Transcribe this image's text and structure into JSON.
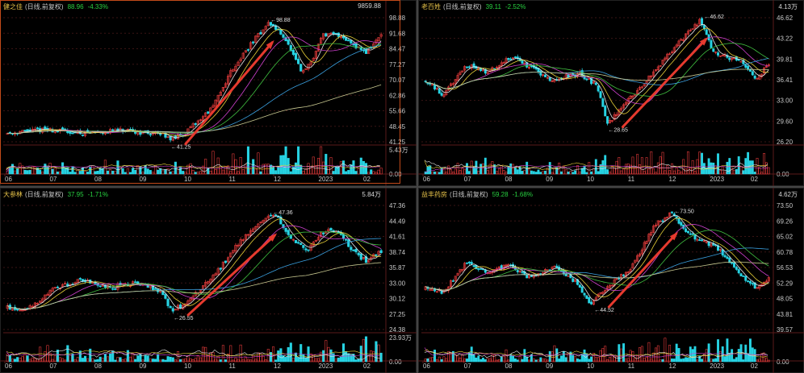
{
  "colors": {
    "up": "#e03a3a",
    "down": "#27d3e3",
    "ma5": "#e8e8e8",
    "ma10": "#e8d038",
    "ma20": "#d040d0",
    "ma30": "#40c040",
    "ma60": "#3aa0e0",
    "ma120": "#c8c890",
    "arrow": "#e63a2e",
    "grid": "#3a1414"
  },
  "panels": [
    {
      "name": "健之佳",
      "period": "(日线,前复权)",
      "price": "88.96",
      "change": "-4.33%",
      "volume": "9859.88",
      "yticks": [
        "98.88",
        "91.68",
        "84.47",
        "77.27",
        "70.07",
        "62.86",
        "55.66",
        "48.45",
        "41.25"
      ],
      "volticks": [
        "5.43万",
        "0.00"
      ],
      "xticks": [
        "06",
        "07",
        "08",
        "09",
        "10",
        "11",
        "12",
        "2023",
        "02"
      ],
      "high_label": "98.88",
      "low_label": "41.25",
      "ymin": 41.25,
      "ymax": 98.88,
      "base": 41,
      "profile": "A"
    },
    {
      "name": "老百姓",
      "period": "(日线,前复权)",
      "price": "39.11",
      "change": "-2.52%",
      "volume": "4.13万",
      "yticks": [
        "46.62",
        "43.22",
        "39.81",
        "36.41",
        "33.00",
        "29.60",
        "26.20"
      ],
      "volticks": [
        "0.00"
      ],
      "xticks": [
        "06",
        "07",
        "08",
        "09",
        "10",
        "11",
        "12",
        "2023",
        "02"
      ],
      "high_label": "46.62",
      "low_label": "28.65",
      "ymin": 26.2,
      "ymax": 46.62,
      "base": 30,
      "profile": "B"
    },
    {
      "name": "大参林",
      "period": "(日线,前复权)",
      "price": "37.95",
      "change": "-1.71%",
      "volume": "5.84万",
      "yticks": [
        "47.36",
        "44.49",
        "41.61",
        "38.74",
        "35.87",
        "33.00",
        "30.12",
        "27.25",
        "24.38"
      ],
      "volticks": [
        "23.93万",
        "0.00"
      ],
      "xticks": [
        "06",
        "07",
        "08",
        "09",
        "10",
        "11",
        "12",
        "2023",
        "02"
      ],
      "high_label": "47.36",
      "low_label": "26.55",
      "ymin": 24.38,
      "ymax": 47.36,
      "base": 28,
      "profile": "C"
    },
    {
      "name": "益丰药房",
      "period": "(日线,前复权)",
      "price": "59.28",
      "change": "-1.68%",
      "volume": "4.62万",
      "yticks": [
        "73.50",
        "69.26",
        "65.02",
        "60.78",
        "56.53",
        "52.29",
        "48.05",
        "43.81",
        "39.57"
      ],
      "volticks": [
        "0.00"
      ],
      "xticks": [
        "06",
        "07",
        "08",
        "09",
        "10",
        "11",
        "12",
        "2023",
        "02"
      ],
      "high_label": "73.50",
      "low_label": "44.52",
      "ymin": 39.57,
      "ymax": 73.5,
      "base": 47,
      "profile": "D"
    }
  ],
  "chart_data": [
    {
      "type": "candlestick",
      "title": "健之佳 (日线,前复权)",
      "x_range": [
        "06",
        "02"
      ],
      "high": 98.88,
      "low": 41.25,
      "last": 88.96,
      "change": "-4.33%"
    },
    {
      "type": "candlestick",
      "title": "老百姓 (日线,前复权)",
      "x_range": [
        "06",
        "02"
      ],
      "high": 46.62,
      "low": 28.65,
      "last": 39.11,
      "change": "-2.52%"
    },
    {
      "type": "candlestick",
      "title": "大参林 (日线,前复权)",
      "x_range": [
        "06",
        "02"
      ],
      "high": 47.36,
      "low": 26.55,
      "last": 37.95,
      "change": "-1.71%"
    },
    {
      "type": "candlestick",
      "title": "益丰药房 (日线,前复权)",
      "x_range": [
        "06",
        "02"
      ],
      "high": 73.5,
      "low": 44.52,
      "last": 59.28,
      "change": "-1.68%"
    }
  ]
}
